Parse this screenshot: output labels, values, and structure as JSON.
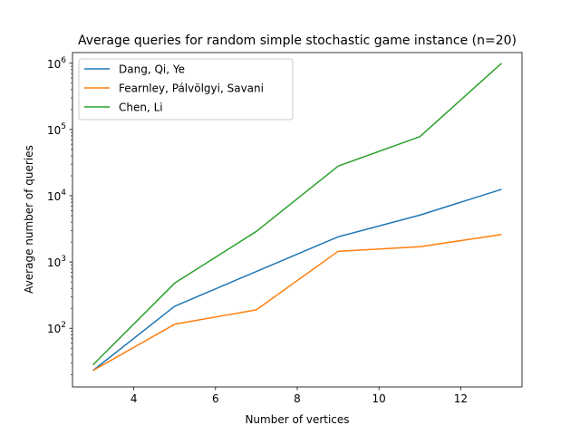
{
  "chart_data": {
    "type": "line",
    "title": "Average queries for random simple stochastic game instance (n=20)",
    "xlabel": "Number of vertices",
    "ylabel": "Average number of queries",
    "x": [
      3,
      5,
      7,
      9,
      11,
      13
    ],
    "xlim": [
      2.5,
      13.5
    ],
    "ylim": [
      13,
      1450000
    ],
    "yscale": "log",
    "xticks": [
      4,
      6,
      8,
      10,
      12
    ],
    "yticks": [
      100,
      1000,
      10000,
      100000,
      1000000
    ],
    "ytick_labels": [
      {
        "base": "10",
        "exp": "2"
      },
      {
        "base": "10",
        "exp": "3"
      },
      {
        "base": "10",
        "exp": "4"
      },
      {
        "base": "10",
        "exp": "5"
      },
      {
        "base": "10",
        "exp": "6"
      }
    ],
    "grid": false,
    "legend_position": "top-left",
    "series": [
      {
        "name": "Dang, Qi, Ye",
        "color": "#1f77b4",
        "values": [
          23,
          215,
          720,
          2400,
          5100,
          12500
        ]
      },
      {
        "name": "Fearnley, Pálvölgyi, Savani",
        "color": "#ff7f0e",
        "values": [
          23,
          115,
          190,
          1450,
          1700,
          2600
        ]
      },
      {
        "name": "Chen, Li",
        "color": "#2ca02c",
        "values": [
          28,
          480,
          2900,
          28000,
          78000,
          1000000
        ]
      }
    ]
  }
}
